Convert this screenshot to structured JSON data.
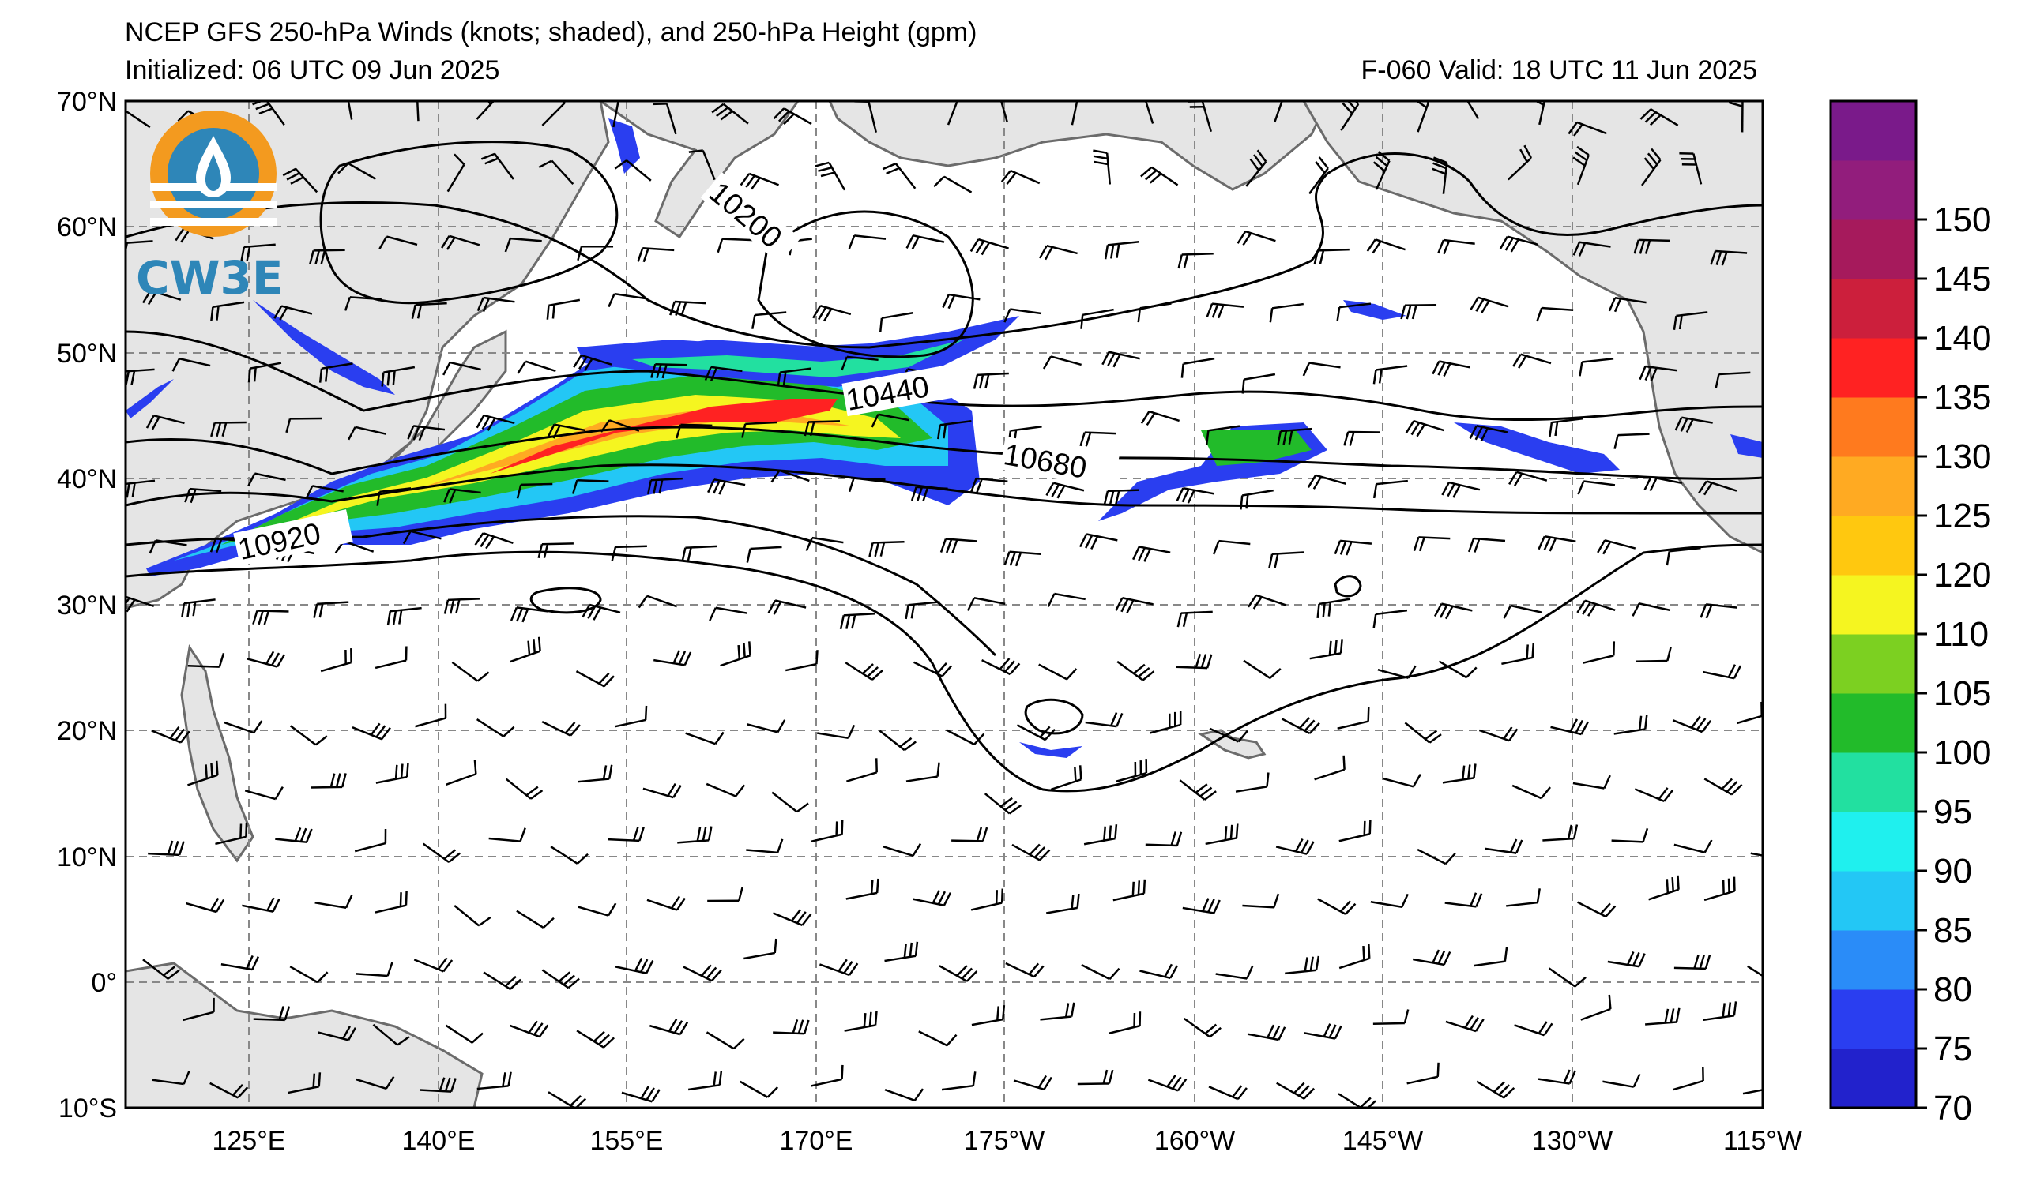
{
  "title": {
    "line1": "NCEP GFS 250-hPa Winds (knots; shaded), and 250-hPa Height (gpm)",
    "line2": "Initialized: 06 UTC 09 Jun 2025",
    "valid": "F-060  Valid: 18 UTC 11 Jun 2025"
  },
  "logo": {
    "text": "CW3E",
    "icon": "cw3e-logo-icon"
  },
  "map": {
    "lat_labels": [
      "70°N",
      "60°N",
      "50°N",
      "40°N",
      "30°N",
      "20°N",
      "10°N",
      "0°",
      "10°S"
    ],
    "lon_labels": [
      "125°E",
      "140°E",
      "155°E",
      "170°E",
      "175°W",
      "160°W",
      "145°W",
      "130°W",
      "115°W"
    ],
    "lat_range": [
      -10,
      70
    ],
    "lon_range": [
      "115°E",
      "115°W"
    ],
    "gridlines": "dashed gray",
    "contour_labels": [
      "10200",
      "10440",
      "10680",
      "10920"
    ]
  },
  "colorbar": {
    "ticks": [
      "70",
      "75",
      "80",
      "85",
      "90",
      "95",
      "100",
      "105",
      "110",
      "120",
      "125",
      "130",
      "135",
      "140",
      "145",
      "150"
    ],
    "colors": [
      "#2222cc",
      "#2a3ef0",
      "#2a8cf8",
      "#23c7f5",
      "#1ff0ee",
      "#22e0a0",
      "#22bb2a",
      "#7cd021",
      "#f5f520",
      "#ffc80f",
      "#ffaa22",
      "#ff7a1e",
      "#ff2222",
      "#cc1f3c",
      "#a61a5c",
      "#921d7c",
      "#7a1a8a"
    ]
  },
  "colors": {
    "land": "#e5e5e5",
    "coast": "#6b6b6b",
    "grid": "#888888"
  }
}
